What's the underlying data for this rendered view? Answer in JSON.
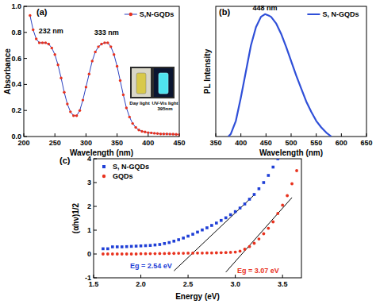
{
  "chart_data": [
    {
      "type": "line",
      "panel_label": "(a)",
      "x_label": "Wavelength (nm)",
      "y_label": "Absorbance",
      "x": [
        210,
        215,
        220,
        225,
        230,
        235,
        240,
        245,
        250,
        255,
        260,
        265,
        270,
        275,
        280,
        285,
        290,
        295,
        300,
        305,
        310,
        315,
        320,
        325,
        330,
        335,
        340,
        345,
        350,
        355,
        360,
        365,
        370,
        375,
        380,
        385,
        390,
        395,
        400,
        405,
        410,
        415,
        420,
        425,
        430,
        435,
        440,
        445,
        450
      ],
      "series": [
        {
          "name": "S,N-GQDs",
          "color": "#e8321e",
          "marker": "circle",
          "values": [
            0.93,
            0.82,
            0.75,
            0.72,
            0.72,
            0.72,
            0.71,
            0.68,
            0.63,
            0.55,
            0.45,
            0.34,
            0.25,
            0.19,
            0.16,
            0.16,
            0.2,
            0.28,
            0.38,
            0.48,
            0.58,
            0.65,
            0.69,
            0.71,
            0.72,
            0.72,
            0.69,
            0.63,
            0.54,
            0.43,
            0.32,
            0.22,
            0.15,
            0.1,
            0.07,
            0.05,
            0.04,
            0.035,
            0.03,
            0.028,
            0.025,
            0.023,
            0.02,
            0.02,
            0.02,
            0.019,
            0.018,
            0.017,
            0.016
          ]
        }
      ],
      "xlim": [
        200,
        450
      ],
      "xticks": [
        200,
        250,
        300,
        350,
        400,
        450
      ],
      "ylim": [
        0,
        1
      ],
      "yticks": [
        {
          "value": 0,
          "label": "0.0"
        },
        0.2,
        0.4,
        0.6,
        0.8,
        {
          "value": 1,
          "label": "1.0"
        }
      ],
      "legend": "upper right",
      "annotations": [
        {
          "text": "232 nm",
          "x": 224,
          "y": 0.79
        },
        {
          "text": "333 nm",
          "x": 333,
          "y": 0.78
        }
      ],
      "inset_labels": [
        "Day light",
        "UV-Vis light",
        "395nm"
      ]
    },
    {
      "type": "line",
      "panel_label": "(b)",
      "x_label": "Wavelength (nm)",
      "y_label": "PL Intensity",
      "x": [
        375,
        380,
        390,
        400,
        410,
        420,
        430,
        440,
        448,
        455,
        460,
        470,
        480,
        490,
        500,
        510,
        520,
        530,
        540,
        550,
        560,
        570,
        580
      ],
      "series": [
        {
          "name": "S, N-GQDs",
          "color": "#2f4fd8",
          "values": [
            0,
            0.02,
            0.12,
            0.3,
            0.5,
            0.7,
            0.84,
            0.92,
            0.94,
            0.93,
            0.92,
            0.87,
            0.79,
            0.69,
            0.58,
            0.47,
            0.37,
            0.27,
            0.19,
            0.12,
            0.07,
            0.03,
            0
          ]
        }
      ],
      "xlim": [
        350,
        650
      ],
      "xticks": [
        350,
        400,
        450,
        500,
        550,
        600,
        650
      ],
      "ylim": [
        0,
        1
      ],
      "tick_labels": "x",
      "legend": "upper right",
      "annotations": [
        {
          "text": "448 nm",
          "x": 448,
          "y": 0.97
        }
      ]
    },
    {
      "type": "scatter",
      "panel_label": "(c)",
      "x_label": "Energy (eV)",
      "y_label": "(αhν)1/2",
      "xlim": [
        1.5,
        3.7
      ],
      "xticks": [
        1.5,
        {
          "value": 2,
          "label": "2.0"
        },
        2.5,
        {
          "value": 3,
          "label": "3.0"
        },
        3.5
      ],
      "ylim": [
        -1,
        4
      ],
      "yticks": [
        -1,
        0,
        1,
        2,
        3,
        4
      ],
      "legend": "upper left",
      "series": [
        {
          "name": "S, N-GQDs",
          "color": "#1f3fd6",
          "marker": "square",
          "x": [
            1.6,
            1.65,
            1.7,
            1.75,
            1.8,
            1.85,
            1.9,
            1.95,
            2.0,
            2.05,
            2.1,
            2.15,
            2.2,
            2.25,
            2.3,
            2.35,
            2.4,
            2.45,
            2.5,
            2.55,
            2.6,
            2.65,
            2.7,
            2.75,
            2.8,
            2.85,
            2.9,
            2.95,
            3.0,
            3.05,
            3.1,
            3.15,
            3.2,
            3.25,
            3.3,
            3.35,
            3.4,
            3.45
          ],
          "values": [
            0.22,
            0.22,
            0.3,
            0.3,
            0.3,
            0.31,
            0.32,
            0.33,
            0.34,
            0.35,
            0.36,
            0.38,
            0.4,
            0.44,
            0.48,
            0.54,
            0.6,
            0.67,
            0.75,
            0.83,
            0.92,
            1.01,
            1.1,
            1.2,
            1.3,
            1.41,
            1.52,
            1.65,
            1.78,
            1.93,
            2.1,
            2.3,
            2.5,
            2.74,
            3.0,
            3.3,
            3.65,
            4.0
          ]
        },
        {
          "name": "GQDs",
          "color": "#e8321e",
          "marker": "circle",
          "x": [
            1.6,
            1.65,
            1.7,
            1.75,
            1.8,
            1.85,
            1.9,
            1.95,
            2.0,
            2.05,
            2.1,
            2.15,
            2.2,
            2.25,
            2.3,
            2.35,
            2.4,
            2.45,
            2.5,
            2.55,
            2.6,
            2.65,
            2.7,
            2.75,
            2.8,
            2.85,
            2.9,
            2.95,
            3.0,
            3.05,
            3.1,
            3.15,
            3.2,
            3.25,
            3.3,
            3.35,
            3.4,
            3.45,
            3.5,
            3.55,
            3.6,
            3.65
          ],
          "values": [
            0,
            0,
            0,
            0,
            0,
            0,
            0,
            0,
            0.01,
            0.01,
            0.015,
            0.015,
            0.02,
            0.02,
            0.025,
            0.025,
            0.03,
            0.03,
            0.035,
            0.035,
            0.04,
            0.04,
            0.045,
            0.045,
            0.05,
            0.055,
            0.06,
            0.07,
            0.08,
            0.12,
            0.2,
            0.31,
            0.45,
            0.63,
            0.85,
            1.08,
            1.35,
            1.7,
            2.05,
            2.45,
            2.95,
            3.5
          ]
        }
      ],
      "tangents": [
        {
          "x": [
            2.35,
            3.2
          ],
          "y": [
            -0.71,
            2.48
          ]
        },
        {
          "x": [
            2.9,
            3.6
          ],
          "y": [
            -0.76,
            2.37
          ]
        }
      ],
      "annotations": [
        {
          "text": "Eg = 2.54 eV",
          "x": 2.33,
          "y": -0.6,
          "color": "#1f3fd6"
        },
        {
          "text": "Eg = 3.07 eV",
          "x": 3.02,
          "y": -0.8,
          "color": "#e8321e"
        }
      ]
    }
  ]
}
